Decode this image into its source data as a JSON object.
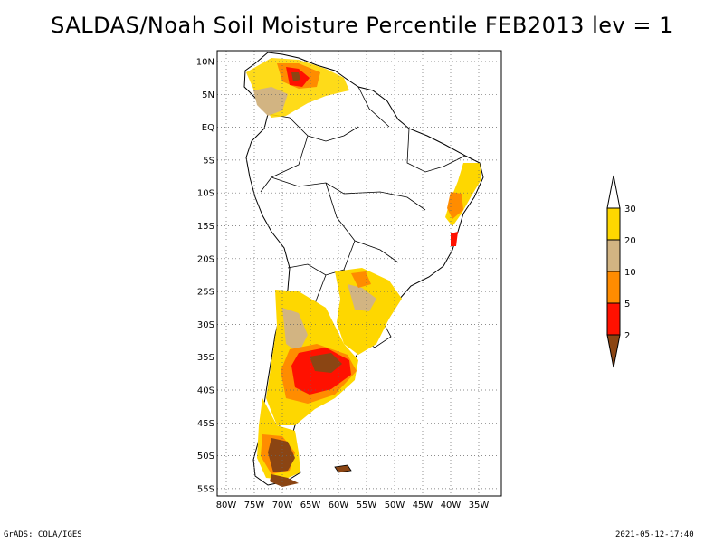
{
  "title": "SALDAS/Noah Soil Moisture Percentile FEB2013 lev = 1",
  "map": {
    "lat_ticks": [
      "10N",
      "5N",
      "EQ",
      "5S",
      "10S",
      "15S",
      "20S",
      "25S",
      "30S",
      "35S",
      "40S",
      "45S",
      "50S",
      "55S"
    ],
    "lon_ticks": [
      "80W",
      "75W",
      "70W",
      "65W",
      "60W",
      "55W",
      "50W",
      "45W",
      "40W",
      "35W"
    ],
    "lon_range": [
      -81,
      -32
    ],
    "lat_range": [
      -56,
      12
    ],
    "gridlines": "dotted"
  },
  "legend": {
    "labels": [
      "30",
      "20",
      "10",
      "5",
      "2"
    ],
    "colors": {
      "above30": "#ffffff",
      "c20_30": "#fed700",
      "c10_20": "#d2b482",
      "c5_10": "#ff8c00",
      "c2_5": "#ff1100",
      "below2": "#8b4513"
    }
  },
  "footer": {
    "left": "GrADS: COLA/IGES",
    "right": "2021-05-12-17:40"
  }
}
